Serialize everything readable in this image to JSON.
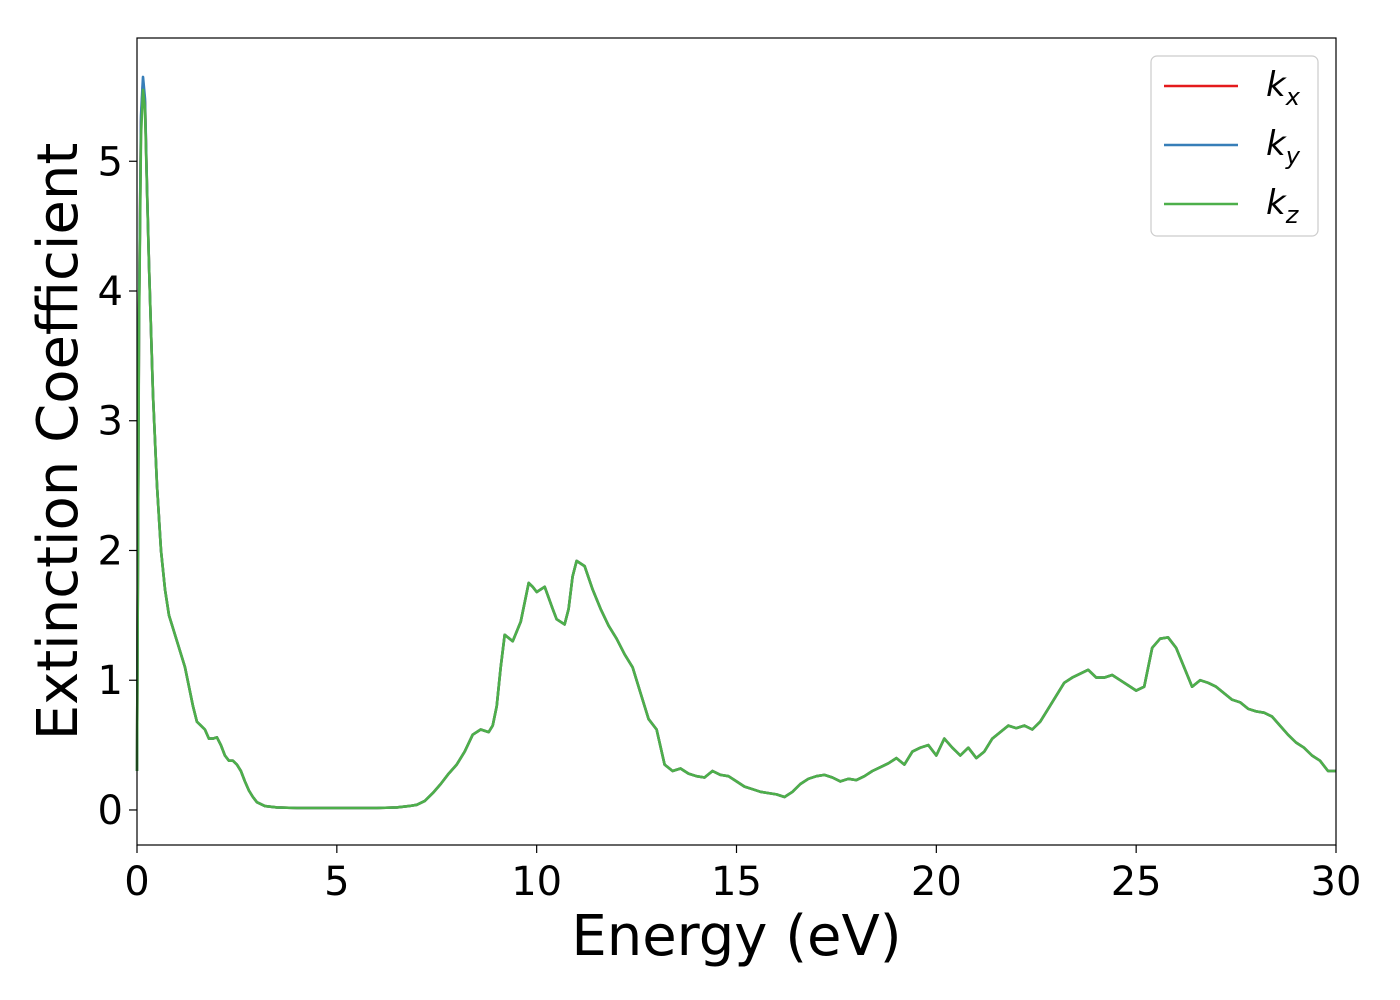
{
  "chart_data": {
    "type": "line",
    "title": "",
    "xlabel": "Energy (eV)",
    "ylabel": "Extinction Coefficient",
    "xlim": [
      0,
      30
    ],
    "ylim": [
      -0.27,
      5.95
    ],
    "xticks": [
      0,
      5,
      10,
      15,
      20,
      25,
      30
    ],
    "yticks": [
      0,
      1,
      2,
      3,
      4,
      5
    ],
    "grid": false,
    "legend_position": "top-right",
    "x": [
      0.0,
      0.05,
      0.1,
      0.15,
      0.2,
      0.25,
      0.3,
      0.4,
      0.5,
      0.6,
      0.7,
      0.8,
      0.9,
      1.0,
      1.1,
      1.2,
      1.3,
      1.4,
      1.5,
      1.6,
      1.7,
      1.8,
      1.9,
      2.0,
      2.1,
      2.2,
      2.3,
      2.4,
      2.5,
      2.6,
      2.7,
      2.8,
      2.9,
      3.0,
      3.2,
      3.5,
      4.0,
      4.5,
      5.0,
      5.5,
      6.0,
      6.5,
      6.8,
      7.0,
      7.2,
      7.4,
      7.6,
      7.8,
      8.0,
      8.2,
      8.4,
      8.6,
      8.8,
      8.9,
      9.0,
      9.1,
      9.2,
      9.4,
      9.6,
      9.7,
      9.8,
      9.9,
      10.0,
      10.2,
      10.4,
      10.5,
      10.6,
      10.7,
      10.8,
      10.9,
      11.0,
      11.2,
      11.4,
      11.6,
      11.8,
      12.0,
      12.2,
      12.4,
      12.6,
      12.8,
      13.0,
      13.2,
      13.4,
      13.6,
      13.8,
      14.0,
      14.2,
      14.4,
      14.6,
      14.8,
      15.0,
      15.2,
      15.4,
      15.6,
      15.8,
      16.0,
      16.2,
      16.4,
      16.6,
      16.8,
      17.0,
      17.2,
      17.4,
      17.6,
      17.8,
      18.0,
      18.2,
      18.4,
      18.6,
      18.8,
      19.0,
      19.2,
      19.4,
      19.6,
      19.8,
      20.0,
      20.2,
      20.4,
      20.6,
      20.8,
      21.0,
      21.2,
      21.4,
      21.6,
      21.8,
      22.0,
      22.2,
      22.4,
      22.6,
      22.8,
      23.0,
      23.2,
      23.4,
      23.6,
      23.8,
      24.0,
      24.2,
      24.4,
      24.6,
      24.8,
      25.0,
      25.2,
      25.4,
      25.6,
      25.8,
      26.0,
      26.2,
      26.4,
      26.6,
      26.8,
      27.0,
      27.2,
      27.4,
      27.6,
      27.8,
      28.0,
      28.2,
      28.4,
      28.6,
      28.8,
      29.0,
      29.2,
      29.4,
      29.6,
      29.8,
      30.0
    ],
    "series": [
      {
        "name": "k_x",
        "color": "#e41a1c",
        "y": [
          0.3,
          3.8,
          5.3,
          5.62,
          5.45,
          4.8,
          4.2,
          3.2,
          2.5,
          2.0,
          1.7,
          1.5,
          1.4,
          1.3,
          1.2,
          1.1,
          0.95,
          0.8,
          0.68,
          0.65,
          0.62,
          0.55,
          0.55,
          0.56,
          0.5,
          0.42,
          0.38,
          0.38,
          0.35,
          0.3,
          0.22,
          0.15,
          0.1,
          0.06,
          0.03,
          0.02,
          0.015,
          0.015,
          0.015,
          0.015,
          0.015,
          0.02,
          0.03,
          0.04,
          0.07,
          0.13,
          0.2,
          0.28,
          0.35,
          0.45,
          0.58,
          0.62,
          0.6,
          0.65,
          0.8,
          1.1,
          1.35,
          1.3,
          1.45,
          1.6,
          1.75,
          1.72,
          1.68,
          1.72,
          1.55,
          1.47,
          1.45,
          1.43,
          1.55,
          1.8,
          1.92,
          1.88,
          1.7,
          1.55,
          1.42,
          1.32,
          1.2,
          1.1,
          0.9,
          0.7,
          0.62,
          0.35,
          0.3,
          0.32,
          0.28,
          0.26,
          0.25,
          0.3,
          0.27,
          0.26,
          0.22,
          0.18,
          0.16,
          0.14,
          0.13,
          0.12,
          0.1,
          0.14,
          0.2,
          0.24,
          0.26,
          0.27,
          0.25,
          0.22,
          0.24,
          0.23,
          0.26,
          0.3,
          0.33,
          0.36,
          0.4,
          0.35,
          0.45,
          0.48,
          0.5,
          0.42,
          0.55,
          0.48,
          0.42,
          0.48,
          0.4,
          0.45,
          0.55,
          0.6,
          0.65,
          0.63,
          0.65,
          0.62,
          0.68,
          0.78,
          0.88,
          0.98,
          1.02,
          1.05,
          1.08,
          1.02,
          1.02,
          1.04,
          1.0,
          0.96,
          0.92,
          0.95,
          1.25,
          1.32,
          1.33,
          1.25,
          1.1,
          0.95,
          1.0,
          0.98,
          0.95,
          0.9,
          0.85,
          0.83,
          0.78,
          0.76,
          0.75,
          0.72,
          0.65,
          0.58,
          0.52,
          0.48,
          0.42,
          0.38,
          0.3,
          0.3
        ]
      },
      {
        "name": "k_y",
        "color": "#377eb8",
        "y": [
          0.3,
          3.8,
          5.35,
          5.65,
          5.48,
          4.8,
          4.2,
          3.2,
          2.5,
          2.0,
          1.7,
          1.5,
          1.4,
          1.3,
          1.2,
          1.1,
          0.95,
          0.8,
          0.68,
          0.65,
          0.62,
          0.55,
          0.55,
          0.56,
          0.5,
          0.42,
          0.38,
          0.38,
          0.35,
          0.3,
          0.22,
          0.15,
          0.1,
          0.06,
          0.03,
          0.02,
          0.015,
          0.015,
          0.015,
          0.015,
          0.015,
          0.02,
          0.03,
          0.04,
          0.07,
          0.13,
          0.2,
          0.28,
          0.35,
          0.45,
          0.58,
          0.62,
          0.6,
          0.65,
          0.8,
          1.1,
          1.35,
          1.3,
          1.45,
          1.6,
          1.75,
          1.72,
          1.68,
          1.72,
          1.55,
          1.47,
          1.45,
          1.43,
          1.55,
          1.8,
          1.92,
          1.88,
          1.7,
          1.55,
          1.42,
          1.32,
          1.2,
          1.1,
          0.9,
          0.7,
          0.62,
          0.35,
          0.3,
          0.32,
          0.28,
          0.26,
          0.25,
          0.3,
          0.27,
          0.26,
          0.22,
          0.18,
          0.16,
          0.14,
          0.13,
          0.12,
          0.1,
          0.14,
          0.2,
          0.24,
          0.26,
          0.27,
          0.25,
          0.22,
          0.24,
          0.23,
          0.26,
          0.3,
          0.33,
          0.36,
          0.4,
          0.35,
          0.45,
          0.48,
          0.5,
          0.42,
          0.55,
          0.48,
          0.42,
          0.48,
          0.4,
          0.45,
          0.55,
          0.6,
          0.65,
          0.63,
          0.65,
          0.62,
          0.68,
          0.78,
          0.88,
          0.98,
          1.02,
          1.05,
          1.08,
          1.02,
          1.02,
          1.04,
          1.0,
          0.96,
          0.92,
          0.95,
          1.25,
          1.32,
          1.33,
          1.25,
          1.1,
          0.95,
          1.0,
          0.98,
          0.95,
          0.9,
          0.85,
          0.83,
          0.78,
          0.76,
          0.75,
          0.72,
          0.65,
          0.58,
          0.52,
          0.48,
          0.42,
          0.38,
          0.3,
          0.3
        ]
      },
      {
        "name": "k_z",
        "color": "#4daf4a",
        "y": [
          0.3,
          3.7,
          5.2,
          5.55,
          5.4,
          4.78,
          4.2,
          3.2,
          2.5,
          2.0,
          1.7,
          1.5,
          1.4,
          1.3,
          1.2,
          1.1,
          0.95,
          0.8,
          0.68,
          0.65,
          0.62,
          0.55,
          0.55,
          0.56,
          0.5,
          0.42,
          0.38,
          0.38,
          0.35,
          0.3,
          0.22,
          0.15,
          0.1,
          0.06,
          0.03,
          0.02,
          0.015,
          0.015,
          0.015,
          0.015,
          0.015,
          0.02,
          0.03,
          0.04,
          0.07,
          0.13,
          0.2,
          0.28,
          0.35,
          0.45,
          0.58,
          0.62,
          0.6,
          0.65,
          0.8,
          1.1,
          1.35,
          1.3,
          1.45,
          1.6,
          1.75,
          1.72,
          1.68,
          1.72,
          1.55,
          1.47,
          1.45,
          1.43,
          1.55,
          1.8,
          1.92,
          1.88,
          1.7,
          1.55,
          1.42,
          1.32,
          1.2,
          1.1,
          0.9,
          0.7,
          0.62,
          0.35,
          0.3,
          0.32,
          0.28,
          0.26,
          0.25,
          0.3,
          0.27,
          0.26,
          0.22,
          0.18,
          0.16,
          0.14,
          0.13,
          0.12,
          0.1,
          0.14,
          0.2,
          0.24,
          0.26,
          0.27,
          0.25,
          0.22,
          0.24,
          0.23,
          0.26,
          0.3,
          0.33,
          0.36,
          0.4,
          0.35,
          0.45,
          0.48,
          0.5,
          0.42,
          0.55,
          0.48,
          0.42,
          0.48,
          0.4,
          0.45,
          0.55,
          0.6,
          0.65,
          0.63,
          0.65,
          0.62,
          0.68,
          0.78,
          0.88,
          0.98,
          1.02,
          1.05,
          1.08,
          1.02,
          1.02,
          1.04,
          1.0,
          0.96,
          0.92,
          0.95,
          1.25,
          1.32,
          1.33,
          1.25,
          1.1,
          0.95,
          1.0,
          0.98,
          0.95,
          0.9,
          0.85,
          0.83,
          0.78,
          0.76,
          0.75,
          0.72,
          0.65,
          0.58,
          0.52,
          0.48,
          0.42,
          0.38,
          0.3,
          0.3
        ]
      }
    ]
  }
}
